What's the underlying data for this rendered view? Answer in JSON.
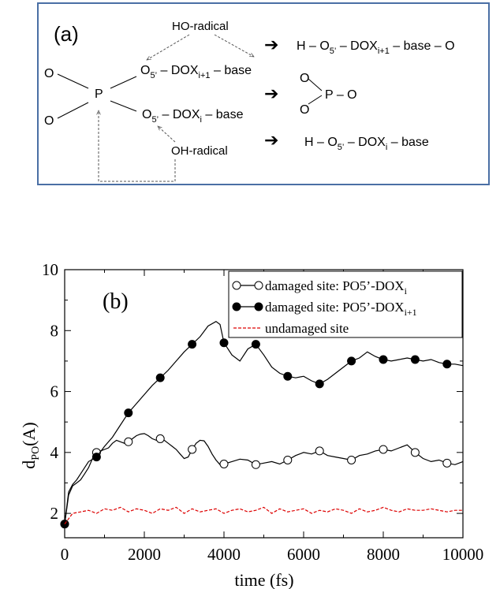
{
  "scheme": {
    "panel_label": "(a)",
    "p_atom": "P",
    "o_upper": "O",
    "o_lower": "O",
    "ho_radical": "HO-radical",
    "oh_radical": "OH-radical",
    "dash": "–",
    "o5_sub": "5’",
    "dox": "DOX",
    "sub_i1": "i+1",
    "sub_i": "i",
    "base": "base",
    "prod1_h": "H –",
    "prod1_tail": "– base – O",
    "prod2_p": "P – O",
    "prod2_o": "O",
    "prod3_h": "H –",
    "prod3_tail": "– base",
    "arrow": "➔"
  },
  "chart_data": {
    "type": "line",
    "panel_label": "(b)",
    "xlabel": "time (fs)",
    "ylabel_main": "d",
    "ylabel_sub": "PO",
    "ylabel_unit": "(A)",
    "xlim": [
      0,
      10000
    ],
    "ylim": [
      1.2,
      10
    ],
    "xticks": [
      0,
      2000,
      4000,
      6000,
      8000,
      10000
    ],
    "yticks": [
      2,
      4,
      6,
      8,
      10
    ],
    "legend_position": "top-right",
    "series": [
      {
        "name": "damaged site: PO5’-DOX",
        "name_sub": "i",
        "marker": "open-circle",
        "color": "#000000",
        "x": [
          0,
          100,
          200,
          300,
          400,
          500,
          600,
          700,
          800,
          900,
          1000,
          1100,
          1200,
          1300,
          1400,
          1500,
          1600,
          1700,
          1800,
          1900,
          2000,
          2100,
          2200,
          2300,
          2400,
          2500,
          2600,
          2700,
          2800,
          2900,
          3000,
          3100,
          3200,
          3300,
          3400,
          3500,
          3600,
          3700,
          3800,
          3900,
          4000,
          4200,
          4400,
          4600,
          4800,
          5000,
          5200,
          5400,
          5600,
          5800,
          6000,
          6200,
          6400,
          6600,
          6800,
          7000,
          7200,
          7400,
          7600,
          7800,
          8000,
          8200,
          8400,
          8600,
          8800,
          9000,
          9200,
          9400,
          9600,
          9800,
          10000
        ],
        "y": [
          1.65,
          2.6,
          2.9,
          3.0,
          3.1,
          3.3,
          3.5,
          3.8,
          4.0,
          4.05,
          4.1,
          4.15,
          4.3,
          4.4,
          4.35,
          4.3,
          4.35,
          4.45,
          4.55,
          4.6,
          4.62,
          4.55,
          4.45,
          4.4,
          4.45,
          4.4,
          4.3,
          4.2,
          4.1,
          3.95,
          3.8,
          3.85,
          4.1,
          4.3,
          4.4,
          4.38,
          4.2,
          3.95,
          3.75,
          3.6,
          3.62,
          3.7,
          3.78,
          3.75,
          3.6,
          3.65,
          3.7,
          3.62,
          3.75,
          3.9,
          4.0,
          3.95,
          4.05,
          3.9,
          3.85,
          3.8,
          3.75,
          3.9,
          3.95,
          4.05,
          4.1,
          4.05,
          4.15,
          4.25,
          4.0,
          3.8,
          3.7,
          3.75,
          3.65,
          3.6,
          3.7
        ]
      },
      {
        "name": "damaged site: PO5’-DOX",
        "name_sub": "i+1",
        "marker": "filled-circle",
        "color": "#000000",
        "x": [
          0,
          100,
          200,
          300,
          400,
          500,
          600,
          800,
          1000,
          1200,
          1400,
          1600,
          1800,
          2000,
          2200,
          2400,
          2600,
          2800,
          3000,
          3200,
          3400,
          3600,
          3800,
          3900,
          4000,
          4200,
          4400,
          4600,
          4800,
          5000,
          5200,
          5400,
          5600,
          5800,
          6000,
          6200,
          6400,
          6600,
          6800,
          7000,
          7200,
          7400,
          7600,
          7800,
          8000,
          8200,
          8400,
          8600,
          8800,
          9000,
          9200,
          9400,
          9600,
          9800,
          10000
        ],
        "y": [
          1.65,
          2.7,
          2.95,
          3.1,
          3.3,
          3.5,
          3.7,
          3.85,
          4.2,
          4.5,
          4.9,
          5.3,
          5.6,
          5.9,
          6.2,
          6.45,
          6.7,
          7.0,
          7.3,
          7.55,
          7.8,
          8.15,
          8.3,
          8.2,
          7.6,
          7.2,
          7.0,
          7.4,
          7.55,
          7.2,
          6.8,
          6.6,
          6.5,
          6.45,
          6.5,
          6.35,
          6.25,
          6.4,
          6.6,
          6.8,
          7.0,
          7.1,
          7.3,
          7.15,
          7.05,
          7.0,
          7.05,
          7.1,
          7.05,
          7.0,
          7.05,
          6.95,
          6.9,
          6.9,
          6.85
        ]
      },
      {
        "name": "undamaged site",
        "marker": "none",
        "color": "#dd0000",
        "x": [
          0,
          200,
          400,
          600,
          800,
          1000,
          1200,
          1400,
          1600,
          1800,
          2000,
          2200,
          2400,
          2600,
          2800,
          3000,
          3200,
          3400,
          3600,
          3800,
          4000,
          4200,
          4400,
          4600,
          4800,
          5000,
          5200,
          5400,
          5600,
          5800,
          6000,
          6200,
          6400,
          6600,
          6800,
          7000,
          7200,
          7400,
          7600,
          7800,
          8000,
          8200,
          8400,
          8600,
          8800,
          9000,
          9200,
          9400,
          9600,
          9800,
          10000
        ],
        "y": [
          1.65,
          2.0,
          2.05,
          2.1,
          2.0,
          2.15,
          2.1,
          2.2,
          2.05,
          2.15,
          2.1,
          2.0,
          2.15,
          2.1,
          2.2,
          2.0,
          2.15,
          2.05,
          2.1,
          2.15,
          2.0,
          2.1,
          2.15,
          2.05,
          2.1,
          2.2,
          2.0,
          2.15,
          2.05,
          2.1,
          2.15,
          2.0,
          2.1,
          2.05,
          2.15,
          2.1,
          2.0,
          2.15,
          2.05,
          2.1,
          2.2,
          2.1,
          2.05,
          2.15,
          2.1,
          2.1,
          2.15,
          2.1,
          2.05,
          2.1,
          2.1
        ]
      }
    ]
  }
}
